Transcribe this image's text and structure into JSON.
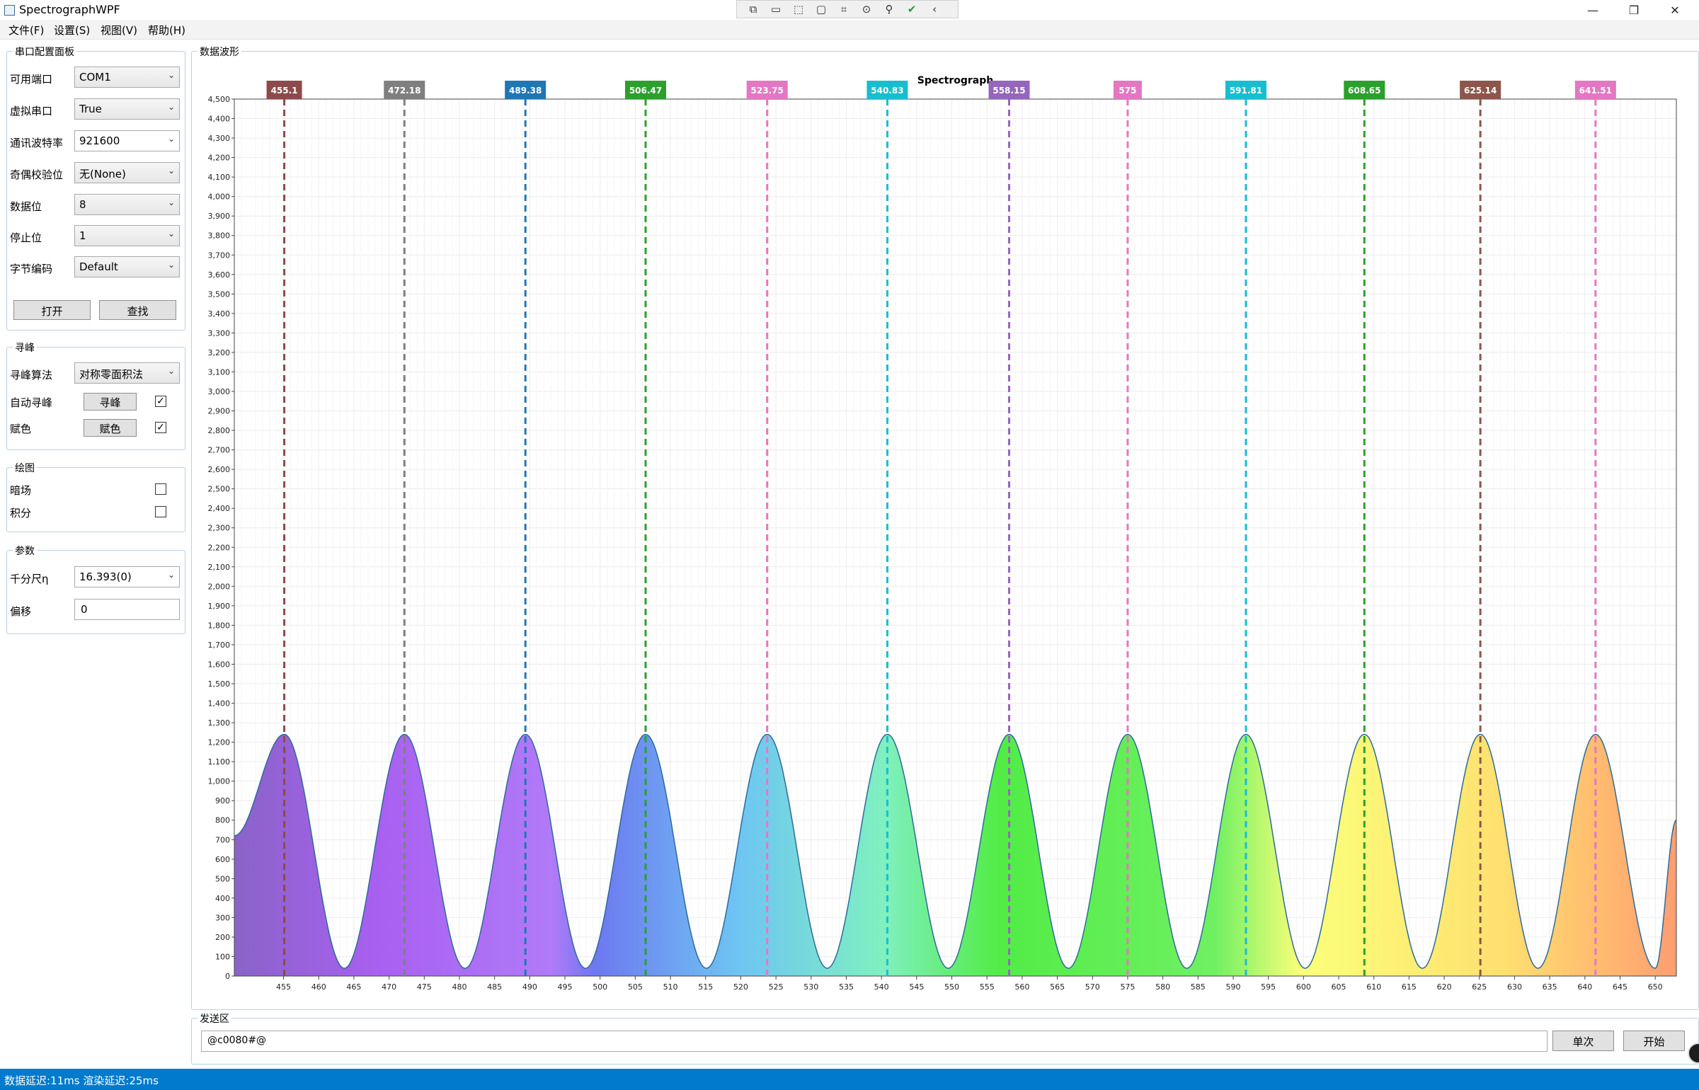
{
  "window": {
    "title": "SpectrographWPF",
    "controls": {
      "minimize": "—",
      "maximize": "❐",
      "close": "✕"
    },
    "debug_toolbar": [
      "⧉",
      "▭",
      "⬚",
      "▢",
      "⌗",
      "⊙",
      "⚲",
      "✔",
      "‹"
    ]
  },
  "menu": [
    "文件(F)",
    "设置(S)",
    "视图(V)",
    "帮助(H)"
  ],
  "serial_panel": {
    "title": "串口配置面板",
    "rows": [
      {
        "label": "可用端口",
        "value": "COM1"
      },
      {
        "label": "虚拟串口",
        "value": "True"
      },
      {
        "label": "通讯波特率",
        "value": "921600"
      },
      {
        "label": "奇偶校验位",
        "value": "无(None)"
      },
      {
        "label": "数据位",
        "value": "8"
      },
      {
        "label": "停止位",
        "value": "1"
      },
      {
        "label": "字节编码",
        "value": "Default"
      }
    ],
    "open_button": "打开",
    "find_button": "查找"
  },
  "peak_panel": {
    "title": "寻峰",
    "algo_label": "寻峰算法",
    "algo_value": "对称零面积法",
    "auto_label": "自动寻峰",
    "auto_button": "寻峰",
    "auto_checked": true,
    "color_label": "赋色",
    "color_button": "赋色",
    "color_checked": true
  },
  "draw_panel": {
    "title": "绘图",
    "dark_label": "暗场",
    "dark_checked": false,
    "integral_label": "积分",
    "integral_checked": false
  },
  "param_panel": {
    "title": "参数",
    "micrometer_label": "千分尺η",
    "micrometer_value": "16.393(0)",
    "offset_label": "偏移",
    "offset_value": "0"
  },
  "wave_panel": {
    "title": "数据波形"
  },
  "send_panel": {
    "title": "发送区",
    "input_value": "@c0080#@",
    "single_button": "单次",
    "start_button": "开始"
  },
  "status": {
    "text": "数据延迟:11ms 渲染延迟:25ms"
  },
  "chart_data": {
    "type": "area",
    "title": "Spectrograph",
    "xlim": [
      448,
      653
    ],
    "ylim": [
      0,
      4500
    ],
    "x_ticks": [
      455,
      460,
      465,
      470,
      475,
      480,
      485,
      490,
      495,
      500,
      505,
      510,
      515,
      520,
      525,
      530,
      535,
      540,
      545,
      550,
      555,
      560,
      565,
      570,
      575,
      580,
      585,
      590,
      595,
      600,
      605,
      610,
      615,
      620,
      625,
      630,
      635,
      640,
      645,
      650
    ],
    "y_ticks": [
      0,
      100,
      200,
      300,
      400,
      500,
      600,
      700,
      800,
      900,
      1000,
      1100,
      1200,
      1300,
      1400,
      1500,
      1600,
      1700,
      1800,
      1900,
      2000,
      2100,
      2200,
      2300,
      2400,
      2500,
      2600,
      2700,
      2800,
      2900,
      3000,
      3100,
      3200,
      3300,
      3400,
      3500,
      3600,
      3700,
      3800,
      3900,
      4000,
      4100,
      4200,
      4300,
      4400,
      4500
    ],
    "grid": true,
    "fill": "spectral color gradient",
    "series": [
      {
        "x": [
          448,
          455.1,
          463.64,
          472.18,
          480.78,
          489.38,
          497.93,
          506.47,
          515.11,
          523.75,
          532.29,
          540.83,
          549.49,
          558.15,
          566.58,
          575.0,
          583.41,
          591.81,
          600.23,
          608.65,
          616.9,
          625.14,
          633.33,
          641.51,
          650.0,
          653
        ],
        "values": [
          720,
          1240,
          40,
          1240,
          40,
          1240,
          40,
          1240,
          40,
          1240,
          40,
          1240,
          40,
          1240,
          40,
          1240,
          40,
          1240,
          40,
          1240,
          40,
          1240,
          40,
          1240,
          40,
          800
        ]
      }
    ],
    "peaks": [
      {
        "label": "455.1",
        "x": 455.1,
        "color": "#8c4a4a"
      },
      {
        "label": "472.18",
        "x": 472.18,
        "color": "#7f7f7f"
      },
      {
        "label": "489.38",
        "x": 489.38,
        "color": "#1f77b4"
      },
      {
        "label": "506.47",
        "x": 506.47,
        "color": "#2ca02c"
      },
      {
        "label": "523.75",
        "x": 523.75,
        "color": "#e377c2"
      },
      {
        "label": "540.83",
        "x": 540.83,
        "color": "#17becf"
      },
      {
        "label": "558.15",
        "x": 558.15,
        "color": "#9467bd"
      },
      {
        "label": "575",
        "x": 575.0,
        "color": "#e377c2"
      },
      {
        "label": "591.81",
        "x": 591.81,
        "color": "#17becf"
      },
      {
        "label": "608.65",
        "x": 608.65,
        "color": "#2ca02c"
      },
      {
        "label": "625.14",
        "x": 625.14,
        "color": "#8c564b"
      },
      {
        "label": "641.51",
        "x": 641.51,
        "color": "#e377c2"
      }
    ]
  }
}
